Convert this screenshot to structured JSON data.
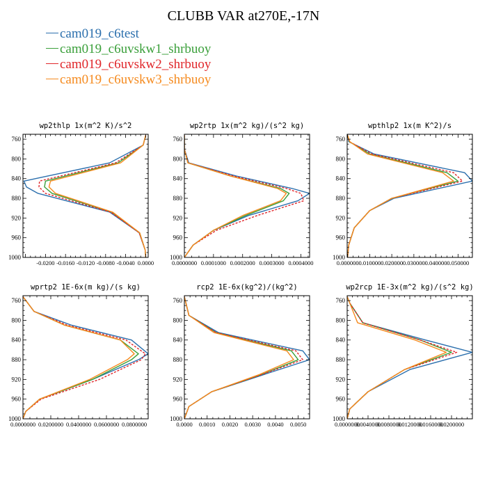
{
  "figure": {
    "title": "CLUBB VAR at270E,-17N",
    "legend": [
      {
        "name": "cam019_c6test",
        "color": "#2b6fad"
      },
      {
        "name": "cam019_c6uvskw1_shrbuoy",
        "color": "#3a9f3a"
      },
      {
        "name": "cam019_c6uvskw2_shrbuoy",
        "color": "#e0262a"
      },
      {
        "name": "cam019_c6uvskw3_shrbuoy",
        "color": "#f58a1e"
      }
    ]
  },
  "chart_data": [
    {
      "type": "line",
      "title": "wp2thlp  1x(m^2 K)/s^2",
      "xlim": [
        -0.0245,
        0.0005
      ],
      "xticks": [
        -0.02,
        -0.016,
        -0.012,
        -0.008,
        -0.004,
        0.0
      ],
      "xticklabels": [
        "-0.0200",
        "-0.0160",
        "-0.0120",
        "-0.0080",
        "-0.0040",
        "0.0000"
      ],
      "ylim": [
        1000,
        750
      ],
      "yticks": [
        760,
        800,
        840,
        880,
        920,
        960,
        1000
      ],
      "levels": [
        752,
        772,
        808,
        845,
        857,
        870,
        908,
        950,
        985,
        1000
      ],
      "series": [
        {
          "values": [
            0.0,
            -0.0005,
            -0.0072,
            -0.0243,
            -0.0238,
            -0.0215,
            -0.0072,
            -0.0013,
            -0.0001,
            0.0
          ]
        },
        {
          "values": [
            0.0,
            -0.0005,
            -0.0055,
            -0.02,
            -0.0202,
            -0.0187,
            -0.0068,
            -0.0012,
            -0.0001,
            0.0
          ]
        },
        {
          "values": [
            0.0,
            -0.0005,
            -0.006,
            -0.0212,
            -0.0213,
            -0.02,
            -0.007,
            -0.0013,
            -0.0001,
            0.0
          ]
        },
        {
          "values": [
            0.0,
            -0.0005,
            -0.005,
            -0.019,
            -0.0193,
            -0.018,
            -0.0066,
            -0.0012,
            -0.0001,
            0.0
          ]
        }
      ]
    },
    {
      "type": "line",
      "title": "wp2rtp  1x(m^2 kg)/(s^2 kg)",
      "xlim": [
        0.0,
        0.00043
      ],
      "xticks": [
        0.0,
        0.0001,
        0.0002,
        0.0003,
        0.0004
      ],
      "xticklabels": [
        "0.0000000",
        "0.0001000",
        "0.0002000",
        "0.0003000",
        "0.0004000"
      ],
      "ylim": [
        1000,
        750
      ],
      "yticks": [
        760,
        800,
        840,
        880,
        920,
        960,
        1000
      ],
      "levels": [
        752,
        780,
        808,
        835,
        860,
        870,
        885,
        915,
        945,
        975,
        1000
      ],
      "series": [
        {
          "values": [
            0.0,
            0.0,
            1.5e-05,
            0.00018,
            0.00037,
            0.00043,
            0.00039,
            0.00022,
            0.0001,
            3e-05,
            0.0
          ]
        },
        {
          "values": [
            0.0,
            0.0,
            1.2e-05,
            0.00016,
            0.00033,
            0.00036,
            0.00034,
            0.00021,
            0.0001,
            3e-05,
            0.0
          ]
        },
        {
          "values": [
            0.0,
            0.0,
            1.3e-05,
            0.00017,
            0.00035,
            0.0004,
            0.00041,
            0.00025,
            0.00011,
            3e-05,
            0.0
          ]
        },
        {
          "values": [
            0.0,
            0.0,
            1.2e-05,
            0.00016,
            0.00032,
            0.00035,
            0.00033,
            0.0002,
            0.0001,
            3e-05,
            0.0
          ]
        }
      ]
    },
    {
      "type": "line",
      "title": "wpthlp2  1x(m K^2)/s",
      "xlim": [
        -0.0002,
        0.0565
      ],
      "xticks": [
        0.0,
        0.01,
        0.02,
        0.03,
        0.04,
        0.05
      ],
      "xticklabels": [
        "0.000000",
        "0.010000",
        "0.020000",
        "0.030000",
        "0.040000",
        "0.050000"
      ],
      "ylim": [
        1000,
        750
      ],
      "yticks": [
        760,
        800,
        840,
        880,
        920,
        960,
        1000
      ],
      "levels": [
        752,
        765,
        790,
        828,
        845,
        880,
        905,
        940,
        975,
        1000
      ],
      "series": [
        {
          "values": [
            0.0,
            0.0005,
            0.012,
            0.053,
            0.0565,
            0.021,
            0.01,
            0.003,
            0.0005,
            0.0
          ]
        },
        {
          "values": [
            0.0,
            0.0008,
            0.01,
            0.045,
            0.05,
            0.02,
            0.01,
            0.003,
            0.0005,
            0.0
          ]
        },
        {
          "values": [
            0.0,
            0.0008,
            0.011,
            0.048,
            0.052,
            0.02,
            0.01,
            0.003,
            0.0005,
            0.0
          ]
        },
        {
          "values": [
            0.0,
            0.001,
            0.009,
            0.043,
            0.048,
            0.02,
            0.01,
            0.003,
            0.0005,
            0.0
          ]
        }
      ]
    },
    {
      "type": "line",
      "title": "wprtp2  1E-6x(m kg)/(s kg)",
      "xlim": [
        0.0,
        0.09
      ],
      "xticks": [
        0.0,
        0.02,
        0.04,
        0.06,
        0.08
      ],
      "xticklabels": [
        "0.0000000",
        "0.0200000",
        "0.0400000",
        "0.0600000",
        "0.0800000"
      ],
      "ylim": [
        1000,
        750
      ],
      "yticks": [
        760,
        800,
        840,
        880,
        920,
        960,
        1000
      ],
      "levels": [
        752,
        782,
        810,
        840,
        868,
        880,
        920,
        960,
        985,
        1000
      ],
      "series": [
        {
          "values": [
            0.0,
            0.008,
            0.035,
            0.078,
            0.09,
            0.083,
            0.05,
            0.012,
            0.002,
            0.0
          ]
        },
        {
          "values": [
            0.0,
            0.008,
            0.03,
            0.07,
            0.083,
            0.078,
            0.05,
            0.012,
            0.002,
            0.0
          ]
        },
        {
          "values": [
            0.0,
            0.008,
            0.032,
            0.074,
            0.088,
            0.085,
            0.055,
            0.013,
            0.002,
            0.0
          ]
        },
        {
          "values": [
            0.0,
            0.008,
            0.03,
            0.07,
            0.08,
            0.075,
            0.048,
            0.012,
            0.002,
            0.0
          ]
        }
      ]
    },
    {
      "type": "line",
      "title": "rcp2  1E-6x(kg^2)/(kg^2)",
      "xlim": [
        0.0,
        0.0055
      ],
      "xticks": [
        0.0,
        0.001,
        0.002,
        0.003,
        0.004,
        0.005
      ],
      "xticklabels": [
        "0.0000",
        "0.0010",
        "0.0020",
        "0.0030",
        "0.0040",
        "0.0050"
      ],
      "ylim": [
        1000,
        750
      ],
      "yticks": [
        760,
        800,
        840,
        880,
        920,
        960,
        1000
      ],
      "levels": [
        752,
        790,
        825,
        862,
        880,
        910,
        945,
        975,
        1000
      ],
      "series": [
        {
          "values": [
            0.0,
            0.0002,
            0.0015,
            0.0052,
            0.0055,
            0.0035,
            0.0012,
            0.0002,
            0.0
          ]
        },
        {
          "values": [
            0.0,
            0.0002,
            0.0014,
            0.0047,
            0.005,
            0.0034,
            0.0012,
            0.0002,
            0.0
          ]
        },
        {
          "values": [
            0.0,
            0.0002,
            0.0014,
            0.0049,
            0.0052,
            0.0034,
            0.0012,
            0.0002,
            0.0
          ]
        },
        {
          "values": [
            0.0,
            0.0002,
            0.0013,
            0.0045,
            0.0048,
            0.0033,
            0.0012,
            0.0002,
            0.0
          ]
        }
      ]
    },
    {
      "type": "line",
      "title": "wp2rcp  1E-3x(m^2 kg)/(s^2 kg)",
      "xlim": [
        0.0,
        0.024
      ],
      "xticks": [
        0.0,
        0.004,
        0.008,
        0.012,
        0.016,
        0.02
      ],
      "xticklabels": [
        "0.0000000",
        "0.0040000",
        "0.0080000",
        "0.0120000",
        "0.0160000",
        "0.0200000"
      ],
      "ylim": [
        1000,
        750
      ],
      "yticks": [
        760,
        800,
        840,
        880,
        920,
        960,
        1000
      ],
      "levels": [
        752,
        765,
        805,
        840,
        865,
        900,
        945,
        980,
        1000
      ],
      "series": [
        {
          "values": [
            0.0,
            0.0005,
            0.003,
            0.015,
            0.024,
            0.012,
            0.004,
            0.0005,
            0.0
          ]
        },
        {
          "values": [
            0.0,
            0.0005,
            0.003,
            0.014,
            0.02,
            0.011,
            0.004,
            0.0005,
            0.0
          ]
        },
        {
          "values": [
            0.0,
            0.0005,
            0.003,
            0.014,
            0.021,
            0.011,
            0.004,
            0.0005,
            0.0
          ]
        },
        {
          "values": [
            0.0,
            0.0005,
            0.002,
            0.013,
            0.019,
            0.011,
            0.004,
            0.0005,
            0.0
          ]
        }
      ]
    }
  ]
}
